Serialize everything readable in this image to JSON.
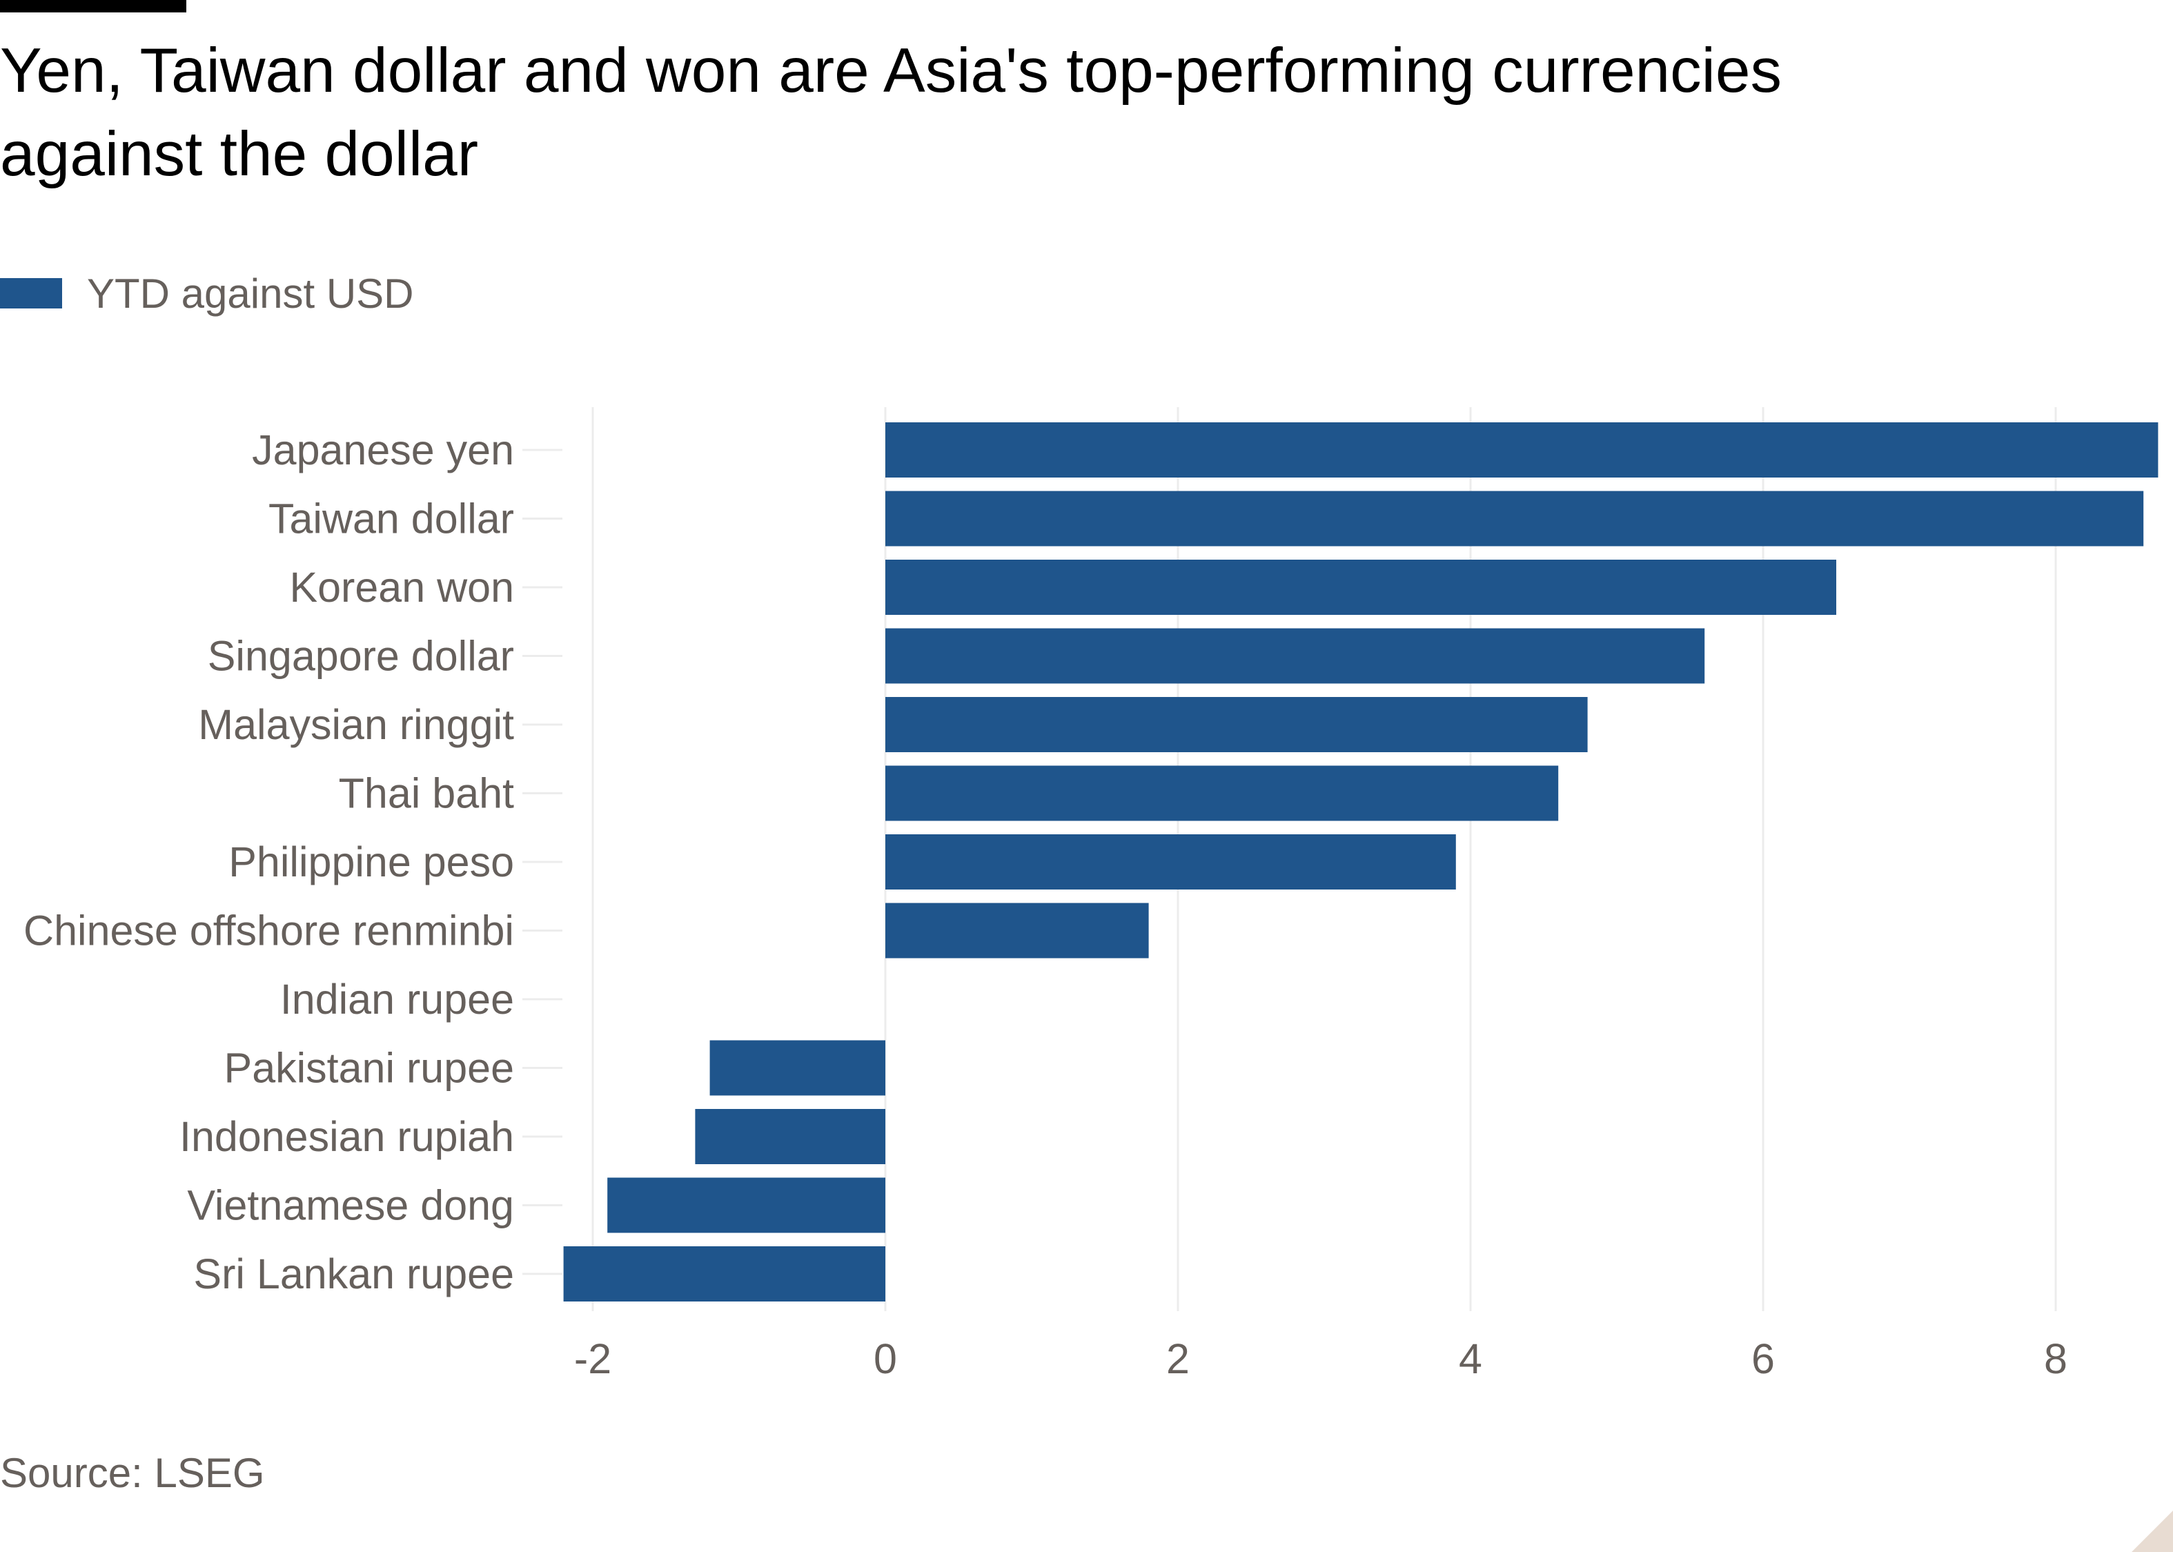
{
  "header": {
    "title": "Yen, Taiwan dollar and won are Asia's top-performing currencies against the dollar"
  },
  "legend": {
    "label": "YTD against USD",
    "color": "#1f558c"
  },
  "source": "Source: LSEG",
  "chart_data": {
    "type": "bar",
    "orientation": "horizontal",
    "title": "Yen, Taiwan dollar and won are Asia's top-performing currencies against the dollar",
    "xlabel": "",
    "ylabel": "",
    "categories": [
      "Japanese yen",
      "Taiwan dollar",
      "Korean won",
      "Singapore dollar",
      "Malaysian ringgit",
      "Thai baht",
      "Philippine peso",
      "Chinese offshore renminbi",
      "Indian rupee",
      "Pakistani rupee",
      "Indonesian rupiah",
      "Vietnamese dong",
      "Sri Lankan rupee"
    ],
    "series": [
      {
        "name": "YTD against USD",
        "color": "#1f558c",
        "values": [
          8.7,
          8.6,
          6.5,
          5.6,
          4.8,
          4.6,
          3.9,
          1.8,
          0.0,
          -1.2,
          -1.3,
          -1.9,
          -2.2
        ]
      }
    ],
    "xlim": [
      -2.2,
      8.7
    ],
    "xticks": [
      -2,
      0,
      2,
      4,
      6,
      8
    ],
    "grid": true,
    "legend_position": "top-left"
  }
}
